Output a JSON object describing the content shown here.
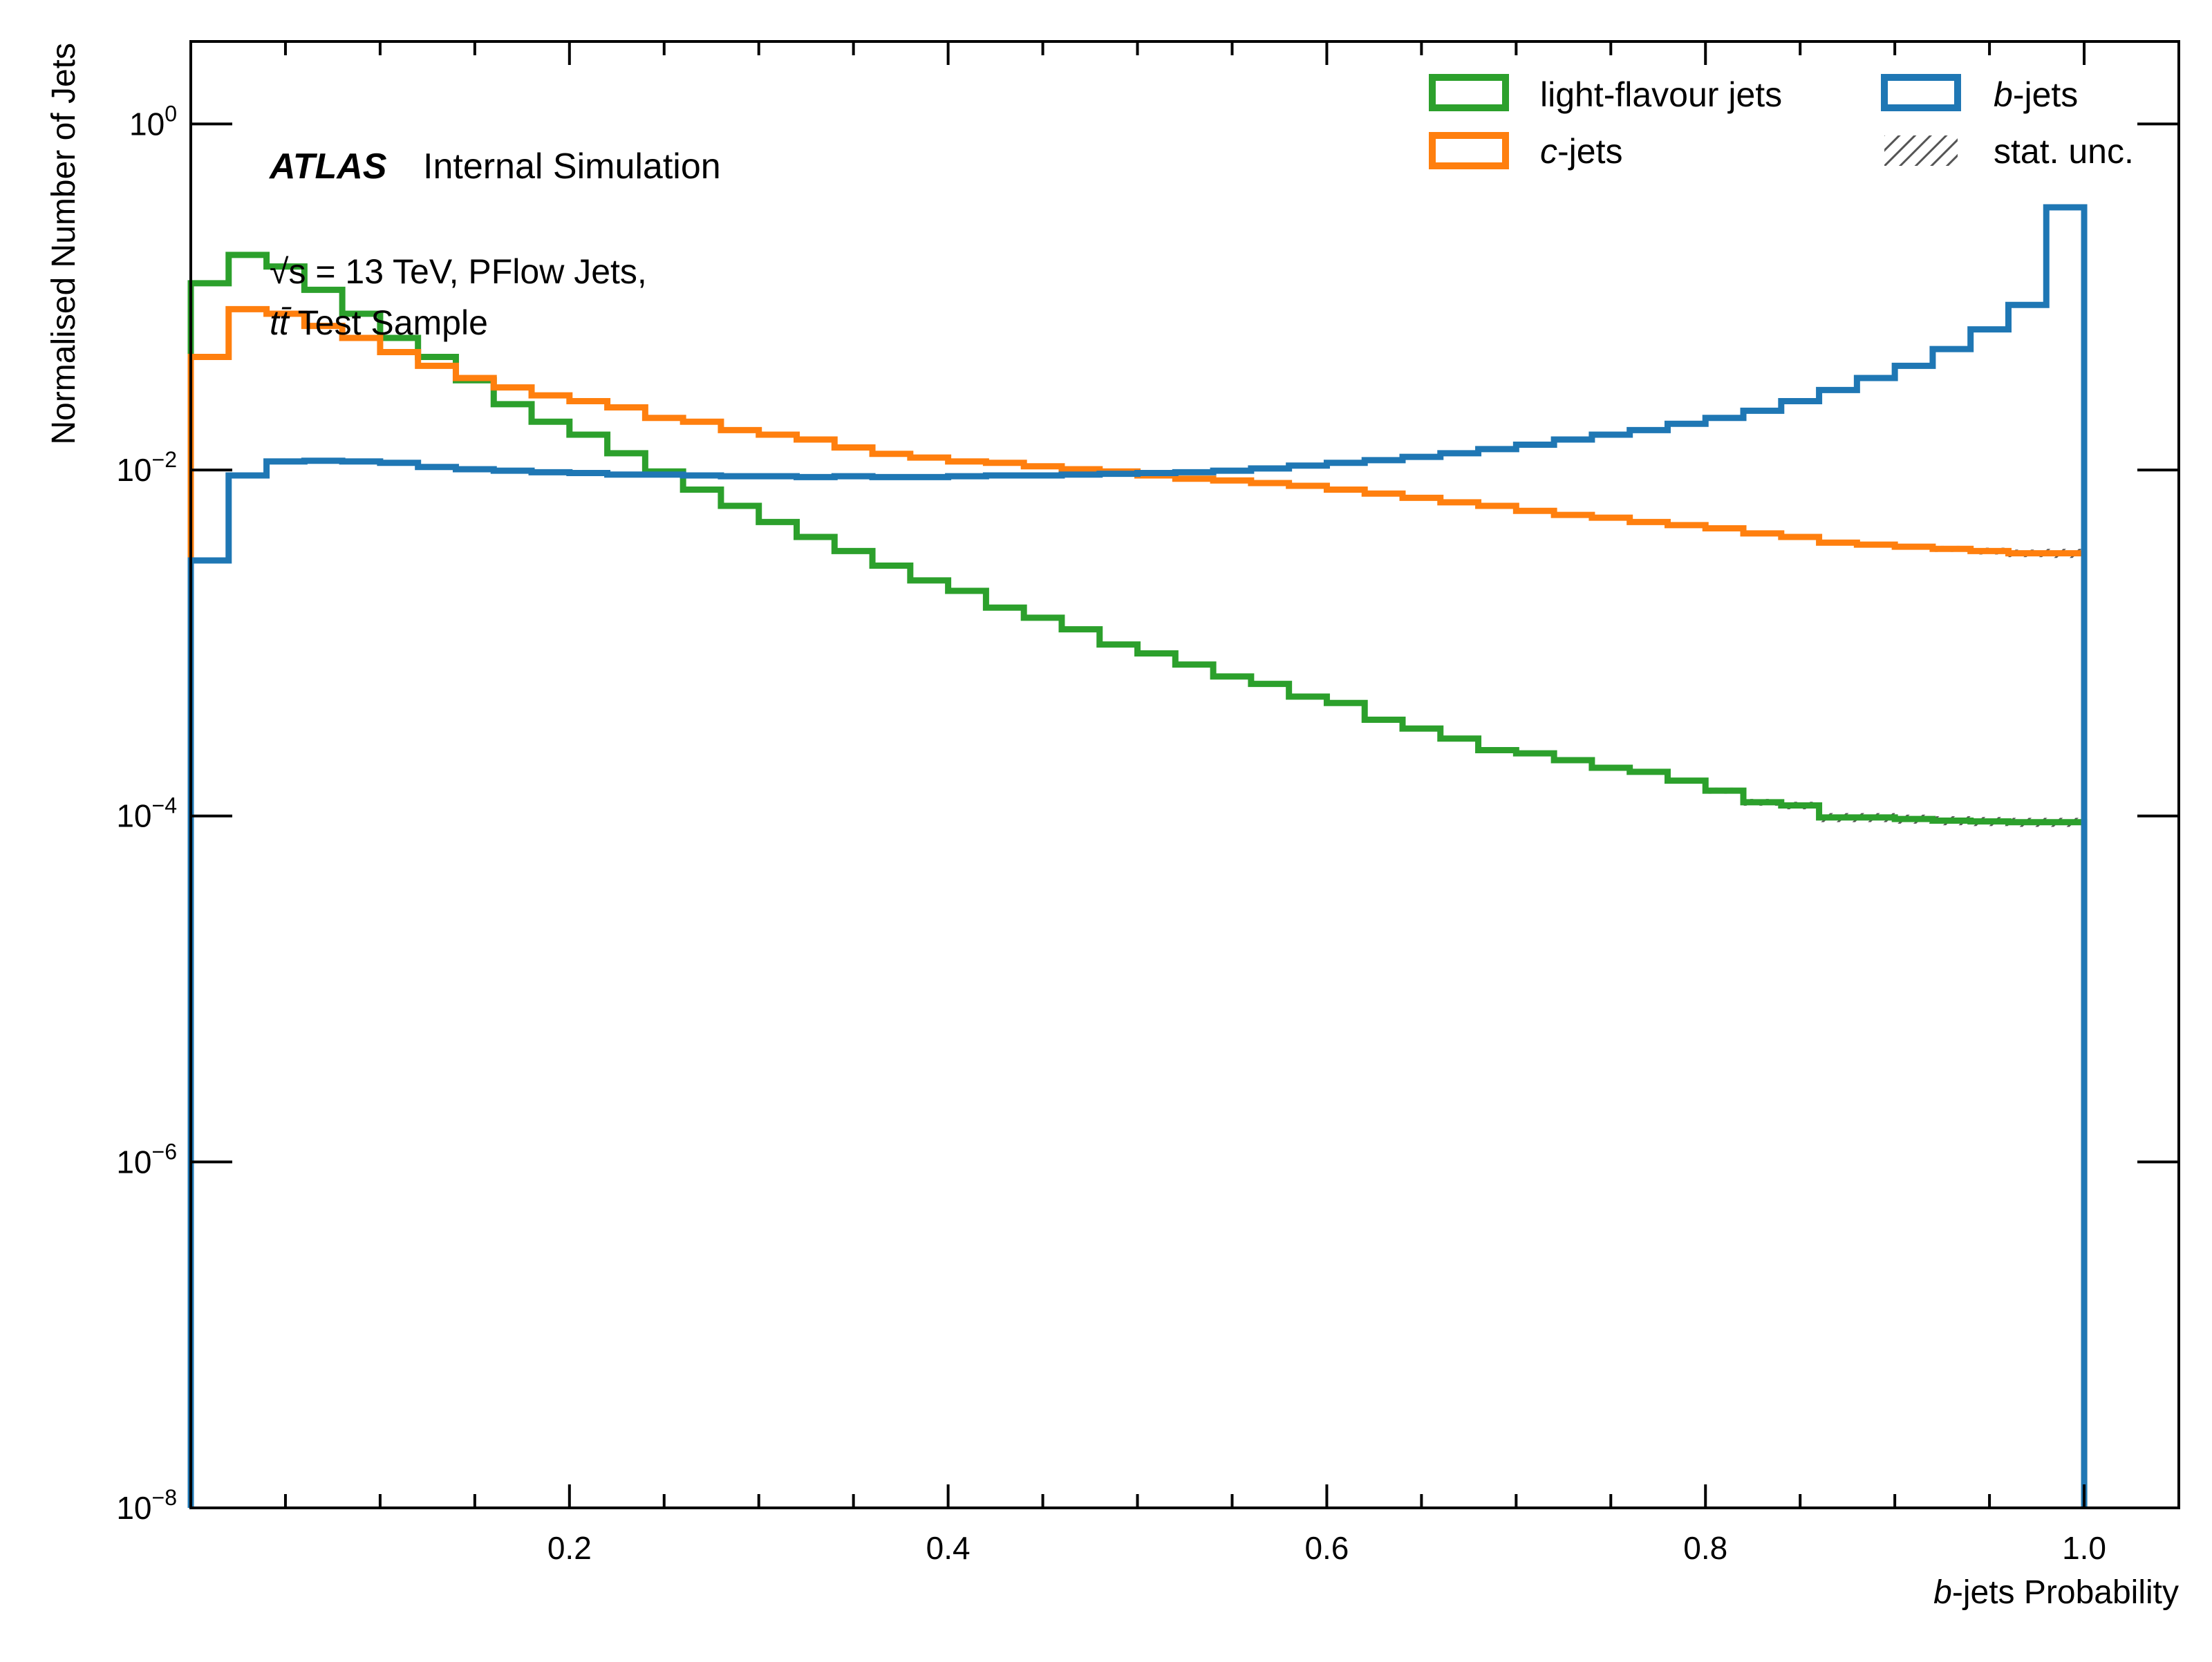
{
  "chart_data": {
    "type": "step-histogram",
    "xlabel_prefix": "b",
    "xlabel_suffix": "-jets Probability",
    "ylabel": "Normalised Number of Jets",
    "xlim": [
      0.0,
      1.05
    ],
    "ylim": [
      1e-08,
      3.0
    ],
    "yscale": "log",
    "x_ticks": [
      {
        "value": 0.2,
        "label": "0.2"
      },
      {
        "value": 0.4,
        "label": "0.4"
      },
      {
        "value": 0.6,
        "label": "0.6"
      },
      {
        "value": 0.8,
        "label": "0.8"
      },
      {
        "value": 1.0,
        "label": "1.0"
      }
    ],
    "y_ticks": [
      {
        "value": 1.0,
        "base": "10",
        "exp": "0"
      },
      {
        "value": 0.01,
        "base": "10",
        "exp": "−2"
      },
      {
        "value": 0.0001,
        "base": "10",
        "exp": "−4"
      },
      {
        "value": 1e-06,
        "base": "10",
        "exp": "−6"
      },
      {
        "value": 1e-08,
        "base": "10",
        "exp": "−8"
      }
    ],
    "bin_width": 0.02,
    "bins_start": 0.0,
    "series": [
      {
        "name": "light-flavour jets",
        "color": "#2ca02c",
        "values": [
          0.12,
          0.175,
          0.15,
          0.11,
          0.08,
          0.058,
          0.045,
          0.033,
          0.024,
          0.019,
          0.016,
          0.0125,
          0.0098,
          0.0077,
          0.0062,
          0.005,
          0.0041,
          0.0034,
          0.0028,
          0.0023,
          0.002,
          0.0016,
          0.0014,
          0.0012,
          0.00098,
          0.00087,
          0.00075,
          0.00064,
          0.00058,
          0.00049,
          0.00045,
          0.00036,
          0.00032,
          0.00028,
          0.00024,
          0.00023,
          0.00021,
          0.00019,
          0.00018,
          0.00016,
          0.00014,
          0.00012,
          0.000115,
          9.8e-05,
          9.8e-05,
          9.6e-05,
          9.4e-05,
          9.3e-05,
          9.2e-05,
          9.2e-05
        ],
        "unc": [
          0.01,
          0.01,
          0.01,
          0.01,
          0.01,
          0.01,
          0.01,
          0.01,
          0.01,
          0.01,
          0.01,
          0.01,
          0.01,
          0.01,
          0.01,
          0.01,
          0.01,
          0.01,
          0.01,
          0.01,
          0.01,
          0.01,
          0.01,
          0.01,
          0.01,
          0.01,
          0.015,
          0.015,
          0.02,
          0.02,
          0.02,
          0.02,
          0.02,
          0.02,
          0.025,
          0.025,
          0.03,
          0.03,
          0.035,
          0.035,
          0.04,
          0.045,
          0.05,
          0.06,
          0.06,
          0.06,
          0.06,
          0.06,
          0.06,
          0.06
        ]
      },
      {
        "name": "c-jets",
        "color": "#ff7f0e",
        "values": [
          0.045,
          0.085,
          0.08,
          0.068,
          0.058,
          0.048,
          0.04,
          0.034,
          0.03,
          0.027,
          0.025,
          0.023,
          0.02,
          0.019,
          0.017,
          0.016,
          0.015,
          0.0135,
          0.0124,
          0.0118,
          0.0112,
          0.011,
          0.0105,
          0.0101,
          0.0098,
          0.0093,
          0.0089,
          0.0087,
          0.0084,
          0.0081,
          0.0077,
          0.0073,
          0.0069,
          0.0065,
          0.0062,
          0.0058,
          0.0055,
          0.0053,
          0.005,
          0.0048,
          0.0046,
          0.0043,
          0.0041,
          0.0038,
          0.0037,
          0.0036,
          0.0035,
          0.0034,
          0.0033,
          0.0033
        ],
        "unc": [
          0.01,
          0.01,
          0.01,
          0.01,
          0.01,
          0.01,
          0.01,
          0.01,
          0.01,
          0.01,
          0.01,
          0.01,
          0.01,
          0.01,
          0.01,
          0.01,
          0.01,
          0.01,
          0.01,
          0.01,
          0.01,
          0.01,
          0.01,
          0.01,
          0.01,
          0.01,
          0.01,
          0.01,
          0.01,
          0.01,
          0.015,
          0.015,
          0.015,
          0.015,
          0.02,
          0.02,
          0.02,
          0.02,
          0.02,
          0.025,
          0.025,
          0.025,
          0.03,
          0.03,
          0.035,
          0.035,
          0.04,
          0.045,
          0.05,
          0.06
        ]
      },
      {
        "name": "b-jets",
        "color": "#1f77b4",
        "values": [
          0.003,
          0.0093,
          0.0112,
          0.0113,
          0.0112,
          0.011,
          0.0104,
          0.0101,
          0.0099,
          0.0097,
          0.0096,
          0.0094,
          0.0094,
          0.0093,
          0.0092,
          0.0092,
          0.0091,
          0.0092,
          0.0091,
          0.0091,
          0.0092,
          0.0093,
          0.0093,
          0.0094,
          0.0095,
          0.0096,
          0.0097,
          0.0099,
          0.0102,
          0.0106,
          0.011,
          0.0114,
          0.0119,
          0.0125,
          0.0132,
          0.014,
          0.015,
          0.016,
          0.017,
          0.0185,
          0.02,
          0.022,
          0.025,
          0.029,
          0.034,
          0.04,
          0.05,
          0.065,
          0.09,
          0.33
        ],
        "unc": [
          0.02,
          0.01,
          0.01,
          0.01,
          0.01,
          0.01,
          0.01,
          0.01,
          0.01,
          0.01,
          0.01,
          0.01,
          0.01,
          0.01,
          0.01,
          0.01,
          0.01,
          0.01,
          0.01,
          0.01,
          0.01,
          0.01,
          0.01,
          0.01,
          0.01,
          0.01,
          0.01,
          0.01,
          0.01,
          0.01,
          0.01,
          0.01,
          0.01,
          0.01,
          0.01,
          0.01,
          0.01,
          0.01,
          0.01,
          0.01,
          0.01,
          0.01,
          0.01,
          0.01,
          0.01,
          0.01,
          0.01,
          0.01,
          0.01,
          0.005
        ]
      }
    ],
    "legend": {
      "position": "top-right",
      "entries": [
        {
          "label_plain": "light-flavour jets",
          "color": "#2ca02c",
          "kind": "box"
        },
        {
          "label_italic": "b",
          "label_rest": "-jets",
          "color": "#1f77b4",
          "kind": "box"
        },
        {
          "label_italic": "c",
          "label_rest": "-jets",
          "color": "#ff7f0e",
          "kind": "box"
        },
        {
          "label_plain": "stat. unc.",
          "color": "#555555",
          "kind": "hatch"
        }
      ]
    },
    "annotations": {
      "atlas_label": "ATLAS",
      "atlas_status": "Internal Simulation",
      "energy_prefix": "√s",
      "energy_rest": " = 13 TeV, PFlow Jets,",
      "sample_italic": "tt̄",
      "sample_rest": " Test Sample"
    },
    "grid": false
  }
}
